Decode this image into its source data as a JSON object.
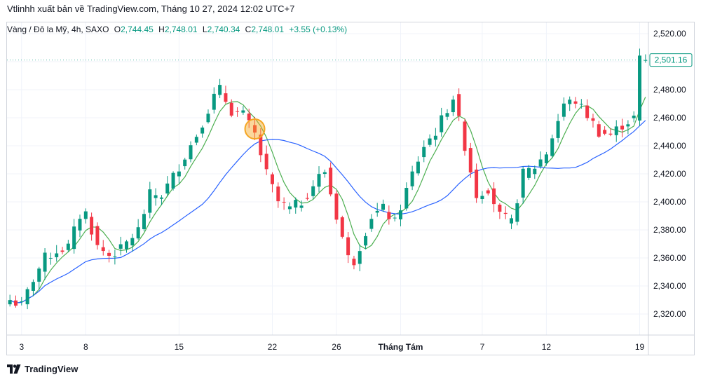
{
  "header": {
    "caption": "Vtlinhh xuất bản về TradingView.com, Tháng 10 27, 2024 12:02 UTC+7"
  },
  "legend": {
    "symbol": "Vàng / Đô la Mỹ, 4h, SAXO",
    "o_label": "O",
    "o_value": "2,744.45",
    "h_label": "H",
    "h_value": "2,748.01",
    "l_label": "L",
    "l_value": "2,740.34",
    "c_label": "C",
    "c_value": "2,748.01",
    "change": "+3.55 (+0.13%)"
  },
  "footer": {
    "brand": "TradingView",
    "logo_icon": "tradingview-logo-icon"
  },
  "chart_data": {
    "type": "candlestick",
    "colors": {
      "up": "#089981",
      "down": "#f23645",
      "ma_fast": "#4caf50",
      "ma_slow": "#2962ff",
      "highlight": "#f5a623",
      "price_label": "#089981"
    },
    "y_axis": {
      "ylim": [
        2305,
        2528
      ],
      "ticks": [
        2320,
        2340,
        2360,
        2380,
        2400,
        2420,
        2440,
        2460,
        2480,
        2500,
        2520
      ],
      "tick_labels": [
        "2,320.00",
        "2,340.00",
        "2,360.00",
        "2,380.00",
        "2,400.00",
        "2,420.00",
        "2,440.00",
        "2,460.00",
        "2,480.00",
        "2,500.00",
        "2,520.00"
      ]
    },
    "x_axis": {
      "labels": [
        {
          "text": "3",
          "index": 2
        },
        {
          "text": "8",
          "index": 13
        },
        {
          "text": "15",
          "index": 29
        },
        {
          "text": "22",
          "index": 45
        },
        {
          "text": "26",
          "index": 56
        },
        {
          "text": "Tháng Tám",
          "index": 67,
          "bold": true
        },
        {
          "text": "7",
          "index": 81
        },
        {
          "text": "12",
          "index": 92
        },
        {
          "text": "19",
          "index": 108
        }
      ]
    },
    "current_price": {
      "value": 2501.16,
      "label": "2,501.16"
    },
    "highlight_marker": {
      "index": 42,
      "price": 2452
    },
    "moving_averages": [
      {
        "period": 5,
        "color": "#4caf50"
      },
      {
        "period": 20,
        "color": "#2962ff"
      }
    ],
    "anchors": [
      [
        0,
        2330
      ],
      [
        2,
        2326
      ],
      [
        4,
        2345
      ],
      [
        6,
        2360
      ],
      [
        8,
        2365
      ],
      [
        10,
        2368
      ],
      [
        12,
        2390
      ],
      [
        13,
        2392
      ],
      [
        15,
        2368
      ],
      [
        17,
        2362
      ],
      [
        19,
        2366
      ],
      [
        22,
        2380
      ],
      [
        24,
        2405
      ],
      [
        26,
        2405
      ],
      [
        28,
        2418
      ],
      [
        32,
        2448
      ],
      [
        35,
        2475
      ],
      [
        36,
        2480
      ],
      [
        38,
        2465
      ],
      [
        40,
        2462
      ],
      [
        42,
        2448
      ],
      [
        44,
        2420
      ],
      [
        46,
        2400
      ],
      [
        48,
        2395
      ],
      [
        50,
        2400
      ],
      [
        53,
        2418
      ],
      [
        54,
        2422
      ],
      [
        56,
        2390
      ],
      [
        58,
        2360
      ],
      [
        59,
        2358
      ],
      [
        62,
        2390
      ],
      [
        64,
        2395
      ],
      [
        66,
        2385
      ],
      [
        69,
        2420
      ],
      [
        71,
        2440
      ],
      [
        73,
        2450
      ],
      [
        76,
        2475
      ],
      [
        78,
        2440
      ],
      [
        80,
        2405
      ],
      [
        82,
        2410
      ],
      [
        84,
        2390
      ],
      [
        86,
        2385
      ],
      [
        88,
        2420
      ],
      [
        90,
        2425
      ],
      [
        92,
        2435
      ],
      [
        95,
        2470
      ],
      [
        97,
        2472
      ],
      [
        99,
        2462
      ],
      [
        101,
        2450
      ],
      [
        103,
        2448
      ],
      [
        105,
        2455
      ],
      [
        107,
        2460
      ],
      [
        108,
        2502
      ],
      [
        109,
        2500
      ]
    ]
  }
}
